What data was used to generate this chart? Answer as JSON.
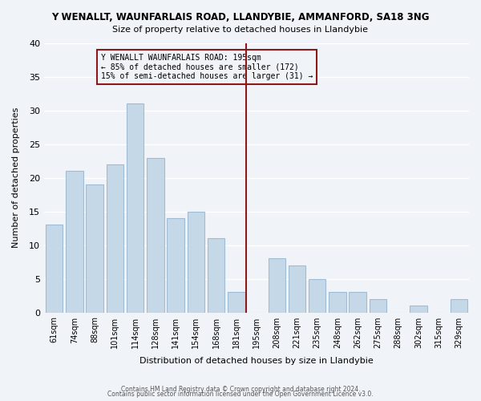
{
  "title": "Y WENALLT, WAUNFARLAIS ROAD, LLANDYBIE, AMMANFORD, SA18 3NG",
  "subtitle": "Size of property relative to detached houses in Llandybie",
  "xlabel": "Distribution of detached houses by size in Llandybie",
  "ylabel": "Number of detached properties",
  "bar_labels": [
    "61sqm",
    "74sqm",
    "88sqm",
    "101sqm",
    "114sqm",
    "128sqm",
    "141sqm",
    "154sqm",
    "168sqm",
    "181sqm",
    "195sqm",
    "208sqm",
    "221sqm",
    "235sqm",
    "248sqm",
    "262sqm",
    "275sqm",
    "288sqm",
    "302sqm",
    "315sqm",
    "329sqm"
  ],
  "bar_values": [
    13,
    21,
    19,
    22,
    31,
    23,
    14,
    15,
    11,
    3,
    0,
    8,
    7,
    5,
    3,
    3,
    2,
    0,
    1,
    0,
    2
  ],
  "bar_color": "#c5d8e8",
  "bar_edge_color": "#a0bcd4",
  "vline_x_index": 10,
  "vline_color": "#8b1a1a",
  "annotation_title": "Y WENALLT WAUNFARLAIS ROAD: 195sqm",
  "annotation_line1": "← 85% of detached houses are smaller (172)",
  "annotation_line2": "15% of semi-detached houses are larger (31) →",
  "annotation_box_color": "#8b1a1a",
  "ylim": [
    0,
    40
  ],
  "yticks": [
    0,
    5,
    10,
    15,
    20,
    25,
    30,
    35,
    40
  ],
  "footer1": "Contains HM Land Registry data © Crown copyright and database right 2024.",
  "footer2": "Contains public sector information licensed under the Open Government Licence v3.0.",
  "background_color": "#f0f4f8",
  "grid_color": "#ffffff"
}
